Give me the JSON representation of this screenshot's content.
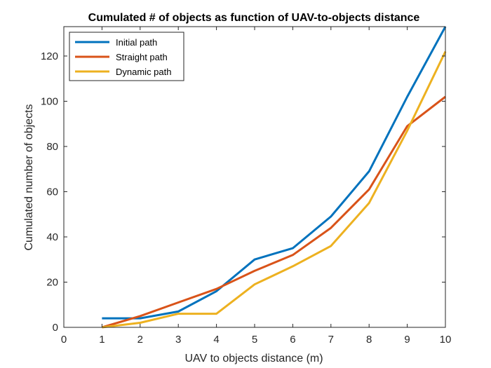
{
  "chart_data": {
    "type": "line",
    "title": "Cumulated # of objects as function of UAV-to-objects distance",
    "xlabel": "UAV to objects distance (m)",
    "ylabel": "Cumulated number of objects",
    "xlim": [
      0,
      10
    ],
    "ylim": [
      0,
      133
    ],
    "xticks": [
      0,
      1,
      2,
      3,
      4,
      5,
      6,
      7,
      8,
      9,
      10
    ],
    "yticks": [
      0,
      20,
      40,
      60,
      80,
      100,
      120
    ],
    "grid": false,
    "legend_position": "top-left",
    "series": [
      {
        "name": "Initial path",
        "color": "#0072BD",
        "x": [
          1,
          2,
          3,
          4,
          5,
          6,
          7,
          8,
          9,
          10
        ],
        "values": [
          4,
          4,
          7,
          16,
          30,
          35,
          49,
          69,
          102,
          133
        ]
      },
      {
        "name": "Straight path",
        "color": "#D95319",
        "x": [
          1,
          2,
          3,
          4,
          5,
          6,
          7,
          8,
          9,
          10
        ],
        "values": [
          0,
          5,
          11,
          17,
          25,
          32,
          44,
          61,
          89,
          102
        ]
      },
      {
        "name": "Dynamic path",
        "color": "#EDB120",
        "x": [
          1,
          2,
          3,
          4,
          5,
          6,
          7,
          8,
          9,
          10
        ],
        "values": [
          0,
          2,
          6,
          6,
          19,
          27,
          36,
          55,
          87,
          122
        ]
      }
    ]
  }
}
